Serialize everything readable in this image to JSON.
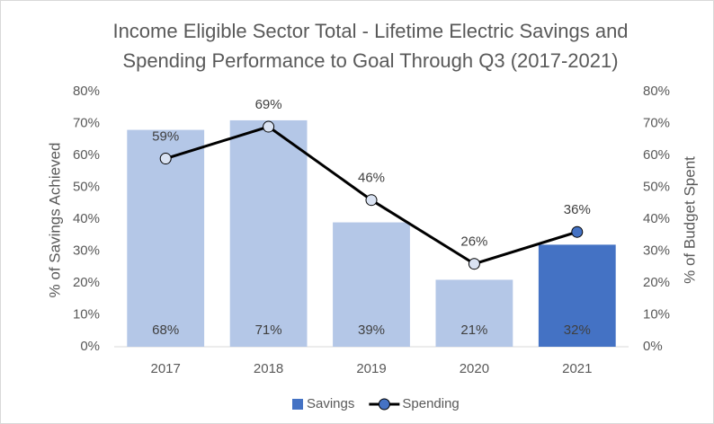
{
  "chart_data": {
    "type": "bar_line",
    "title": "Income Eligible Sector Total - Lifetime Electric Savings and Spending Performance to Goal Through Q3 (2017-2021)",
    "categories": [
      "2017",
      "2018",
      "2019",
      "2020",
      "2021"
    ],
    "ylabel": "% of Savings Achieved",
    "y2label": "% of Budget Spent",
    "ylim": [
      0,
      80
    ],
    "yticks": [
      {
        "value": 0,
        "label": "0%"
      },
      {
        "value": 10,
        "label": "10%"
      },
      {
        "value": 20,
        "label": "20%"
      },
      {
        "value": 30,
        "label": "30%"
      },
      {
        "value": 40,
        "label": "40%"
      },
      {
        "value": 50,
        "label": "50%"
      },
      {
        "value": 60,
        "label": "60%"
      },
      {
        "value": 70,
        "label": "70%"
      },
      {
        "value": 80,
        "label": "80%"
      }
    ],
    "y2lim": [
      0,
      80
    ],
    "y2ticks": [
      {
        "value": 0,
        "label": "0%"
      },
      {
        "value": 10,
        "label": "10%"
      },
      {
        "value": 20,
        "label": "20%"
      },
      {
        "value": 30,
        "label": "30%"
      },
      {
        "value": 40,
        "label": "40%"
      },
      {
        "value": 50,
        "label": "50%"
      },
      {
        "value": 60,
        "label": "60%"
      },
      {
        "value": 70,
        "label": "70%"
      },
      {
        "value": 80,
        "label": "80%"
      }
    ],
    "series": [
      {
        "name": "Savings",
        "type": "bar",
        "color": "#4472c4",
        "colors": [
          "#b4c7e7",
          "#b4c7e7",
          "#b4c7e7",
          "#b4c7e7",
          "#4472c4"
        ],
        "values": [
          68,
          71,
          39,
          21,
          32
        ],
        "value_labels": [
          "68%",
          "71%",
          "39%",
          "21%",
          "32%"
        ]
      },
      {
        "name": "Spending",
        "type": "line",
        "axis": "y2",
        "color": "#000000",
        "marker_colors": [
          "#dae3f3",
          "#dae3f3",
          "#dae3f3",
          "#dae3f3",
          "#4472c4"
        ],
        "values": [
          59,
          69,
          46,
          26,
          36
        ],
        "value_labels": [
          "59%",
          "69%",
          "46%",
          "26%",
          "36%"
        ]
      }
    ]
  }
}
